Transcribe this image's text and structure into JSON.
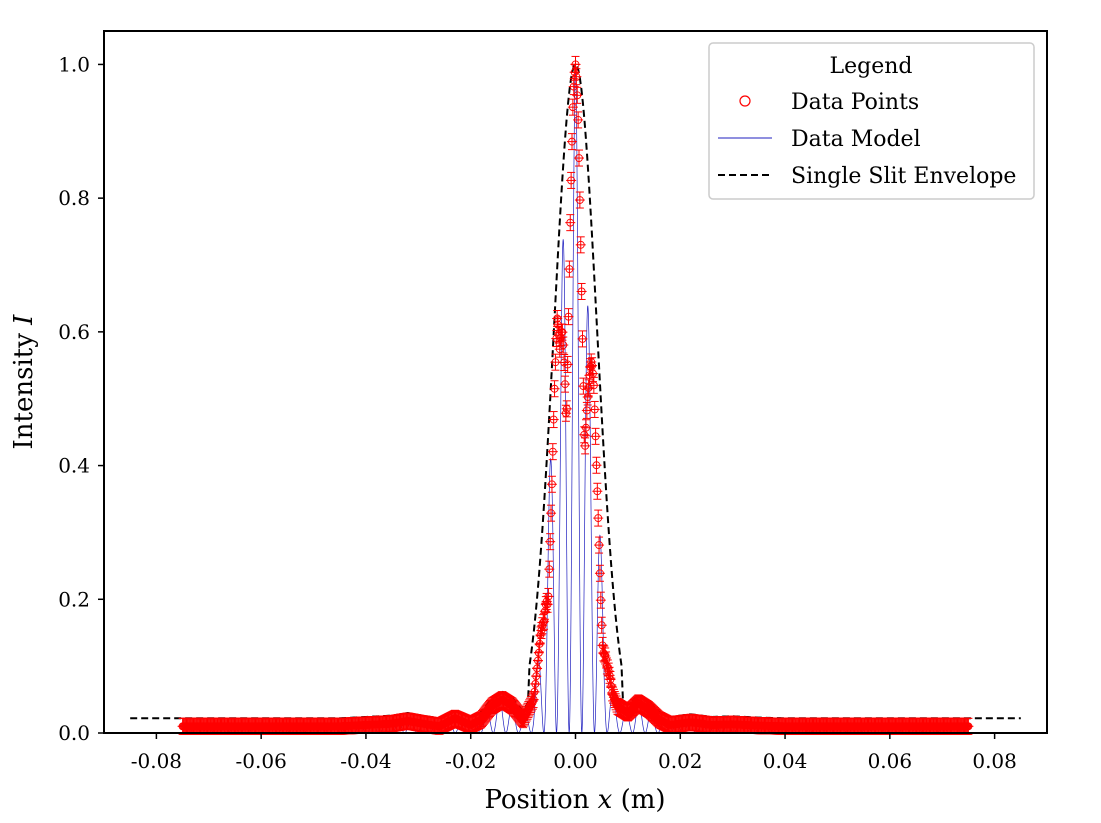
{
  "chart_data": {
    "type": "scatter",
    "xlabel_text": "Position ",
    "xlabel_var": "x",
    "xlabel_unit": " (m)",
    "ylabel_text": "Intensity ",
    "ylabel_var": "I",
    "xlim": [
      -0.09,
      0.09
    ],
    "ylim": [
      0.0,
      1.05
    ],
    "xticks": [
      -0.08,
      -0.06,
      -0.04,
      -0.02,
      0.0,
      0.02,
      0.04,
      0.06,
      0.08
    ],
    "xtick_labels": [
      "-0.08",
      "-0.06",
      "-0.04",
      "-0.02",
      "0.00",
      "0.02",
      "0.04",
      "0.06",
      "0.08"
    ],
    "yticks": [
      0.0,
      0.2,
      0.4,
      0.6,
      0.8,
      1.0
    ],
    "ytick_labels": [
      "0.0",
      "0.2",
      "0.4",
      "0.6",
      "0.8",
      "1.0"
    ],
    "grid": false,
    "legend": {
      "title": "Legend",
      "placement": "top-right",
      "entries": [
        "Data Points",
        "Data Model",
        "Single Slit Envelope"
      ]
    },
    "series": [
      {
        "name": "Data Points",
        "marker": "circle-with-errorbars",
        "color": "#ff0000",
        "x": [
          -0.075,
          -0.07,
          -0.065,
          -0.06,
          -0.055,
          -0.05,
          -0.045,
          -0.04,
          -0.035,
          -0.032,
          -0.03,
          -0.026,
          -0.023,
          -0.02,
          -0.018,
          -0.016,
          -0.014,
          -0.012,
          -0.01,
          -0.008,
          -0.007,
          -0.006,
          -0.0055,
          -0.005,
          -0.0045,
          -0.004,
          -0.0035,
          -0.003,
          -0.0025,
          -0.002,
          -0.0015,
          -0.001,
          -0.0005,
          0.0,
          0.0005,
          0.001,
          0.0015,
          0.002,
          0.0025,
          0.003,
          0.0035,
          0.004,
          0.0045,
          0.005,
          0.0055,
          0.006,
          0.007,
          0.008,
          0.01,
          0.012,
          0.014,
          0.016,
          0.018,
          0.02,
          0.022,
          0.026,
          0.03,
          0.035,
          0.04,
          0.045,
          0.05,
          0.055,
          0.06,
          0.065,
          0.07,
          0.075
        ],
        "y": [
          0.01,
          0.01,
          0.01,
          0.01,
          0.01,
          0.01,
          0.01,
          0.012,
          0.014,
          0.018,
          0.015,
          0.01,
          0.022,
          0.012,
          0.02,
          0.04,
          0.05,
          0.04,
          0.02,
          0.05,
          0.12,
          0.2,
          0.3,
          0.38,
          0.45,
          0.54,
          0.62,
          0.6,
          0.72,
          0.8,
          0.85,
          0.92,
          0.98,
          1.0,
          0.96,
          0.88,
          0.8,
          0.7,
          0.62,
          0.58,
          0.52,
          0.42,
          0.34,
          0.25,
          0.18,
          0.12,
          0.06,
          0.04,
          0.03,
          0.045,
          0.035,
          0.02,
          0.012,
          0.014,
          0.016,
          0.012,
          0.013,
          0.011,
          0.01,
          0.01,
          0.01,
          0.01,
          0.01,
          0.01,
          0.01,
          0.01
        ]
      },
      {
        "name": "Data Model",
        "style": "thin-line",
        "color": "#1f1fbf"
      },
      {
        "name": "Single Slit Envelope",
        "style": "dashed-line",
        "color": "#000000"
      }
    ]
  }
}
